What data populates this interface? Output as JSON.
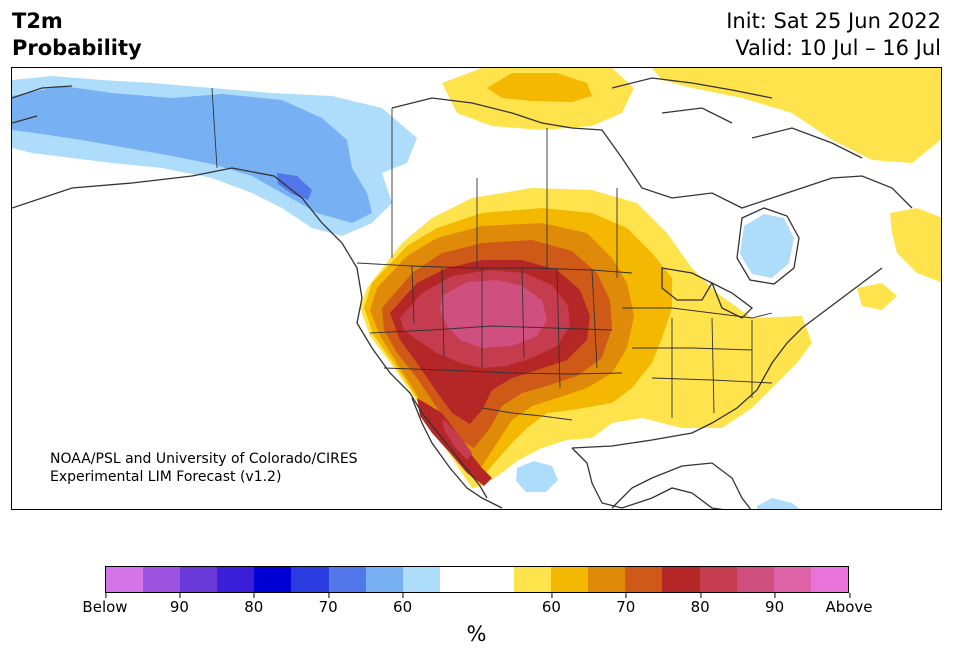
{
  "header": {
    "title_line1": "T2m",
    "title_line2": "Probability",
    "init": "Init: Sat 25 Jun 2022",
    "valid": "Valid: 10 Jul – 16 Jul"
  },
  "map": {
    "credit_line1": "NOAA/PSL and University of Colorado/CIRES",
    "credit_line2": "Experimental LIM Forecast (v1.2)",
    "region": "North America",
    "below_regions": [
      "Alaska",
      "Yukon",
      "British Columbia",
      "Hudson Bay (small)",
      "Baja coast (small)"
    ],
    "above_regions": [
      "Western and Central United States",
      "Great Plains (peak)",
      "Eastern United States",
      "Arctic islands",
      "Labrador and Newfoundland"
    ]
  },
  "colorbar": {
    "colors": [
      "#d474e8",
      "#9d52e1",
      "#6a39d9",
      "#3b1fd8",
      "#0000d5",
      "#2a3ce0",
      "#5277ea",
      "#78b0f4",
      "#aedcfb",
      "#ffffff",
      "#ffffff",
      "#ffe34d",
      "#f4b800",
      "#e08a0a",
      "#cf5a17",
      "#b52626",
      "#c43c4e",
      "#cf4f7e",
      "#de62a8",
      "#ea73dc"
    ],
    "ticks": [
      "Below",
      "90",
      "80",
      "70",
      "60",
      "60",
      "70",
      "80",
      "90",
      "Above"
    ],
    "tick_positions": [
      0,
      0.1,
      0.2,
      0.3,
      0.4,
      0.6,
      0.7,
      0.8,
      0.9,
      1.0
    ],
    "unit": "%"
  }
}
